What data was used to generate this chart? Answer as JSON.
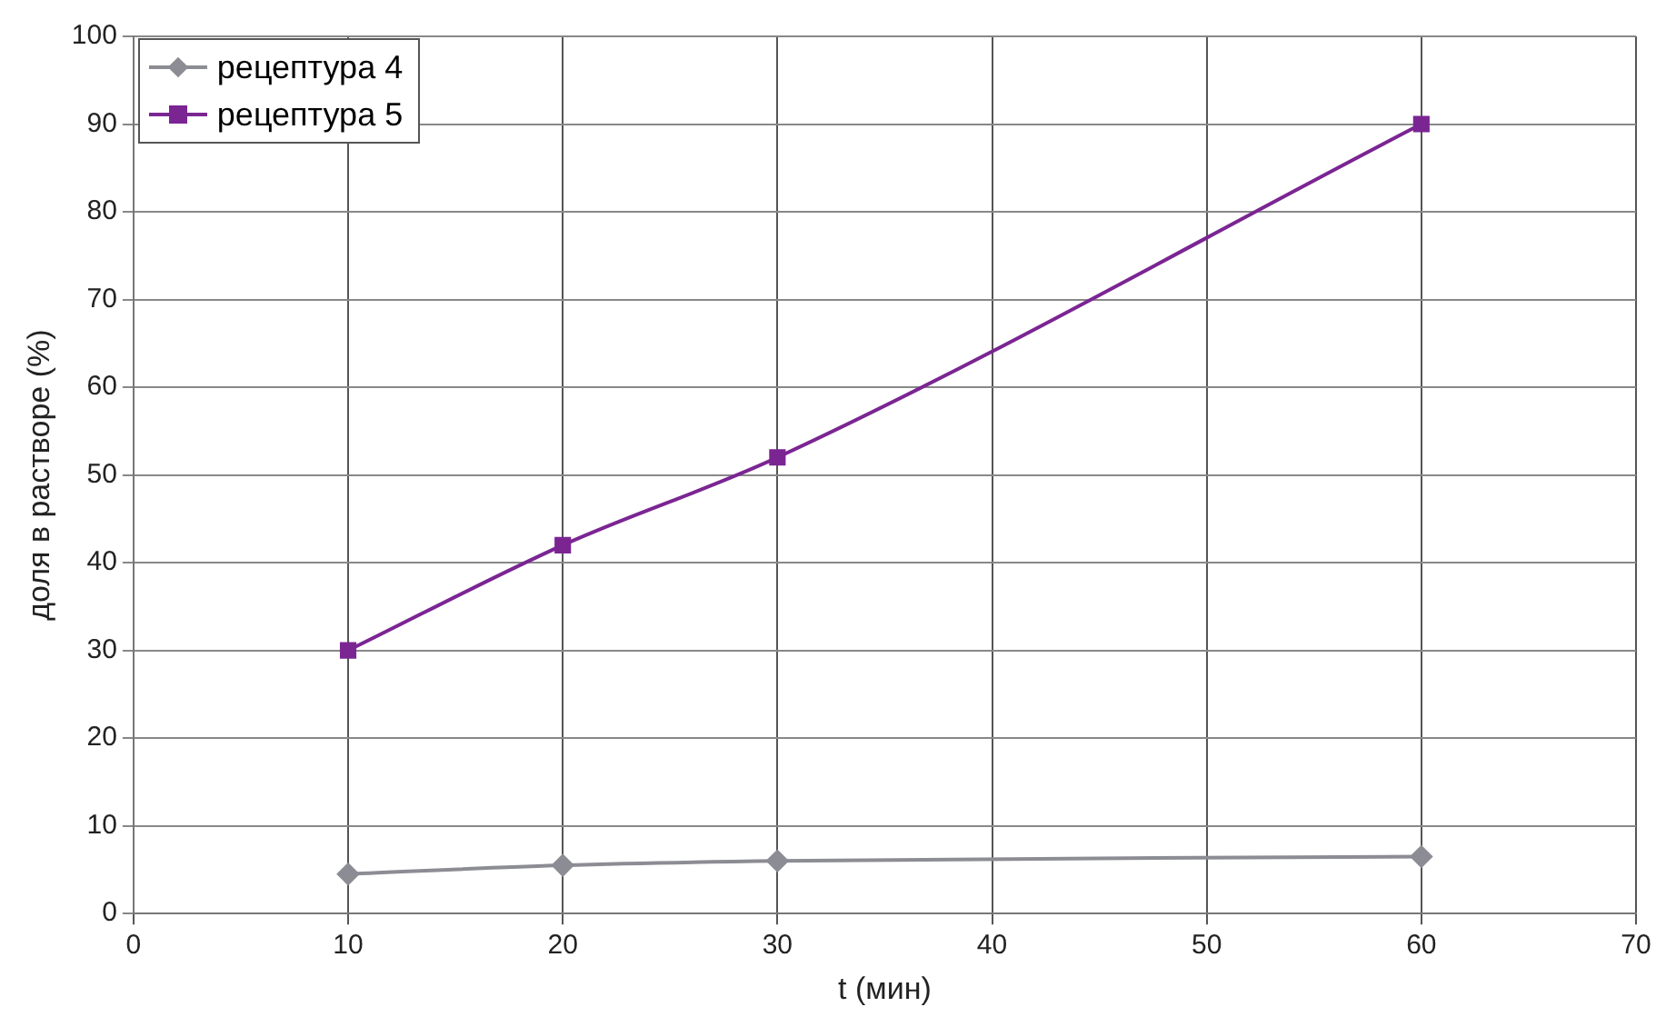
{
  "chart_data": {
    "type": "line",
    "xlabel": "t (мин)",
    "ylabel": "доля в растворе (%)",
    "x": [
      10,
      20,
      30,
      60
    ],
    "series": [
      {
        "name": "рецептура 4",
        "color": "#8c8c94",
        "values": [
          4.5,
          5.5,
          6,
          6.5
        ],
        "marker": "diamond"
      },
      {
        "name": "рецептура 5",
        "color": "#7b2593",
        "values": [
          30,
          42,
          52,
          90
        ],
        "marker": "square"
      }
    ],
    "xlim": [
      0,
      70
    ],
    "xticks": [
      0,
      10,
      20,
      30,
      40,
      50,
      60,
      70
    ],
    "ylim": [
      0,
      100
    ],
    "yticks": [
      0,
      10,
      20,
      30,
      40,
      50,
      60,
      70,
      80,
      90,
      100
    ],
    "grid": true,
    "legend": "top left"
  }
}
